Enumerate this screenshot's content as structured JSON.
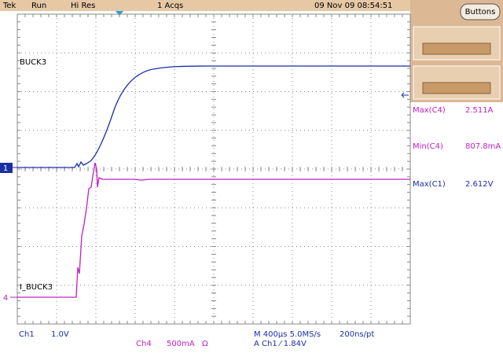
{
  "header": {
    "brand": "Tek",
    "state": "Run",
    "mode": "Hi Res",
    "acquisitions": "1 Acqs",
    "datetime": "09 Nov 09 08:54:51"
  },
  "side_panel": {
    "button": "Buttons",
    "measurements": [
      {
        "label": "Max(C4)",
        "value": "2.511A"
      },
      {
        "label": "Min(C4)",
        "value": "807.8mA"
      },
      {
        "label": "Max(C1)",
        "value": "2.612V"
      }
    ]
  },
  "traces": [
    {
      "label": "BUCK3",
      "marker": "1"
    },
    {
      "label": "I_BUCK3",
      "marker": "4"
    }
  ],
  "footer": {
    "ch1_name": "Ch1",
    "ch1_scale": "1.0V",
    "ch4_name": "Ch4",
    "ch4_scale": "500mA",
    "ch4_impedance": "Ω",
    "timebase": "M 400µs 5.0MS/s",
    "resolution": "200ns/pt",
    "trigger": "A  Ch1  ⁄  1.84V"
  }
}
